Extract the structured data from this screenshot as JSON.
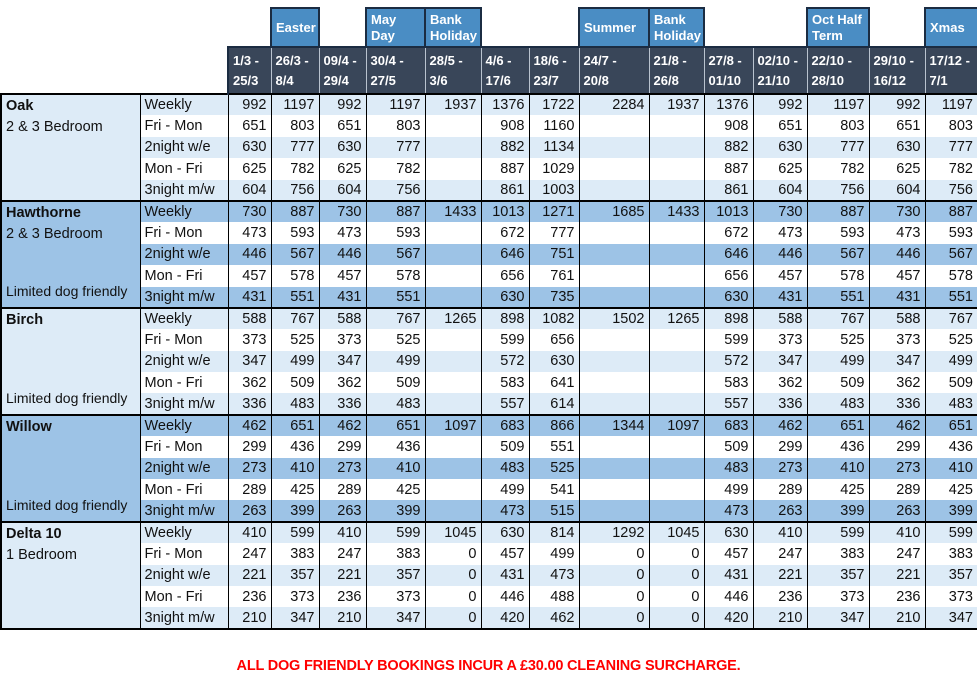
{
  "colors": {
    "season_blue": "#4A8DC4",
    "date_bg": "#394659",
    "light_row": "#DDEBF7",
    "medium_row": "#9DC3E6",
    "dark_border": "#1B2C42",
    "note_red": "#FF0000"
  },
  "header": {
    "seasons": [
      null,
      "Easter",
      null,
      "May Day",
      "Bank Holiday",
      null,
      null,
      "Summer",
      "Bank Holiday",
      null,
      null,
      "Oct Half Term",
      null,
      "Xmas"
    ],
    "date_columns": [
      [
        "1/3 -",
        "25/3"
      ],
      [
        "26/3 -",
        "8/4"
      ],
      [
        "09/4 -",
        "29/4"
      ],
      [
        "30/4 -",
        "27/5"
      ],
      [
        "28/5 -",
        "3/6"
      ],
      [
        "4/6 -",
        "17/6"
      ],
      [
        "18/6 -",
        "23/7"
      ],
      [
        "24/7 -",
        "20/8"
      ],
      [
        "21/8 -",
        "26/8"
      ],
      [
        "27/8 -",
        "01/10"
      ],
      [
        "02/10 -",
        "21/10"
      ],
      [
        "22/10 -",
        "28/10"
      ],
      [
        "29/10 -",
        "16/12"
      ],
      [
        "17/12 -",
        "7/1"
      ]
    ]
  },
  "rate_labels": [
    "Weekly",
    "Fri - Mon",
    "2night w/e",
    "Mon - Fri",
    "3night m/w"
  ],
  "blocks": [
    {
      "name": "Oak",
      "subtitle": "2 & 3 Bedroom",
      "dog_note": "",
      "shade": "light",
      "rows": [
        [
          992,
          1197,
          992,
          1197,
          1937,
          1376,
          1722,
          2284,
          1937,
          1376,
          992,
          1197,
          992,
          1197
        ],
        [
          651,
          803,
          651,
          803,
          "",
          908,
          1160,
          "",
          "",
          908,
          651,
          803,
          651,
          803
        ],
        [
          630,
          777,
          630,
          777,
          "",
          882,
          1134,
          "",
          "",
          882,
          630,
          777,
          630,
          777
        ],
        [
          625,
          782,
          625,
          782,
          "",
          887,
          1029,
          "",
          "",
          887,
          625,
          782,
          625,
          782
        ],
        [
          604,
          756,
          604,
          756,
          "",
          861,
          1003,
          "",
          "",
          861,
          604,
          756,
          604,
          756
        ]
      ]
    },
    {
      "name": "Hawthorne",
      "subtitle": "2 & 3 Bedroom",
      "dog_note": "Limited dog friendly",
      "shade": "medium",
      "rows": [
        [
          730,
          887,
          730,
          887,
          1433,
          1013,
          1271,
          1685,
          1433,
          1013,
          730,
          887,
          730,
          887
        ],
        [
          473,
          593,
          473,
          593,
          "",
          672,
          777,
          "",
          "",
          672,
          473,
          593,
          473,
          593
        ],
        [
          446,
          567,
          446,
          567,
          "",
          646,
          751,
          "",
          "",
          646,
          446,
          567,
          446,
          567
        ],
        [
          457,
          578,
          457,
          578,
          "",
          656,
          761,
          "",
          "",
          656,
          457,
          578,
          457,
          578
        ],
        [
          431,
          551,
          431,
          551,
          "",
          630,
          735,
          "",
          "",
          630,
          431,
          551,
          431,
          551
        ]
      ]
    },
    {
      "name": "Birch",
      "subtitle": "",
      "dog_note": "Limited dog friendly",
      "shade": "light",
      "rows": [
        [
          588,
          767,
          588,
          767,
          1265,
          898,
          1082,
          1502,
          1265,
          898,
          588,
          767,
          588,
          767
        ],
        [
          373,
          525,
          373,
          525,
          "",
          599,
          656,
          "",
          "",
          599,
          373,
          525,
          373,
          525
        ],
        [
          347,
          499,
          347,
          499,
          "",
          572,
          630,
          "",
          "",
          572,
          347,
          499,
          347,
          499
        ],
        [
          362,
          509,
          362,
          509,
          "",
          583,
          641,
          "",
          "",
          583,
          362,
          509,
          362,
          509
        ],
        [
          336,
          483,
          336,
          483,
          "",
          557,
          614,
          "",
          "",
          557,
          336,
          483,
          336,
          483
        ]
      ]
    },
    {
      "name": "Willow",
      "subtitle": "",
      "dog_note": "Limited dog friendly",
      "shade": "medium",
      "rows": [
        [
          462,
          651,
          462,
          651,
          1097,
          683,
          866,
          1344,
          1097,
          683,
          462,
          651,
          462,
          651
        ],
        [
          299,
          436,
          299,
          436,
          "",
          509,
          551,
          "",
          "",
          509,
          299,
          436,
          299,
          436
        ],
        [
          273,
          410,
          273,
          410,
          "",
          483,
          525,
          "",
          "",
          483,
          273,
          410,
          273,
          410
        ],
        [
          289,
          425,
          289,
          425,
          "",
          499,
          541,
          "",
          "",
          499,
          289,
          425,
          289,
          425
        ],
        [
          263,
          399,
          263,
          399,
          "",
          473,
          515,
          "",
          "",
          473,
          263,
          399,
          263,
          399
        ]
      ]
    },
    {
      "name": "Delta 10",
      "subtitle": "1 Bedroom",
      "dog_note": "",
      "shade": "light",
      "rows": [
        [
          410,
          599,
          410,
          599,
          1045,
          630,
          814,
          1292,
          1045,
          630,
          410,
          599,
          410,
          599
        ],
        [
          247,
          383,
          247,
          383,
          0,
          457,
          499,
          0,
          0,
          457,
          247,
          383,
          247,
          383
        ],
        [
          221,
          357,
          221,
          357,
          0,
          431,
          473,
          0,
          0,
          431,
          221,
          357,
          221,
          357
        ],
        [
          236,
          373,
          236,
          373,
          0,
          446,
          488,
          0,
          0,
          446,
          236,
          373,
          236,
          373
        ],
        [
          210,
          347,
          210,
          347,
          0,
          420,
          462,
          0,
          0,
          420,
          210,
          347,
          210,
          347
        ]
      ]
    }
  ],
  "footnote": "ALL DOG FRIENDLY BOOKINGS INCUR A £30.00 CLEANING SURCHARGE."
}
